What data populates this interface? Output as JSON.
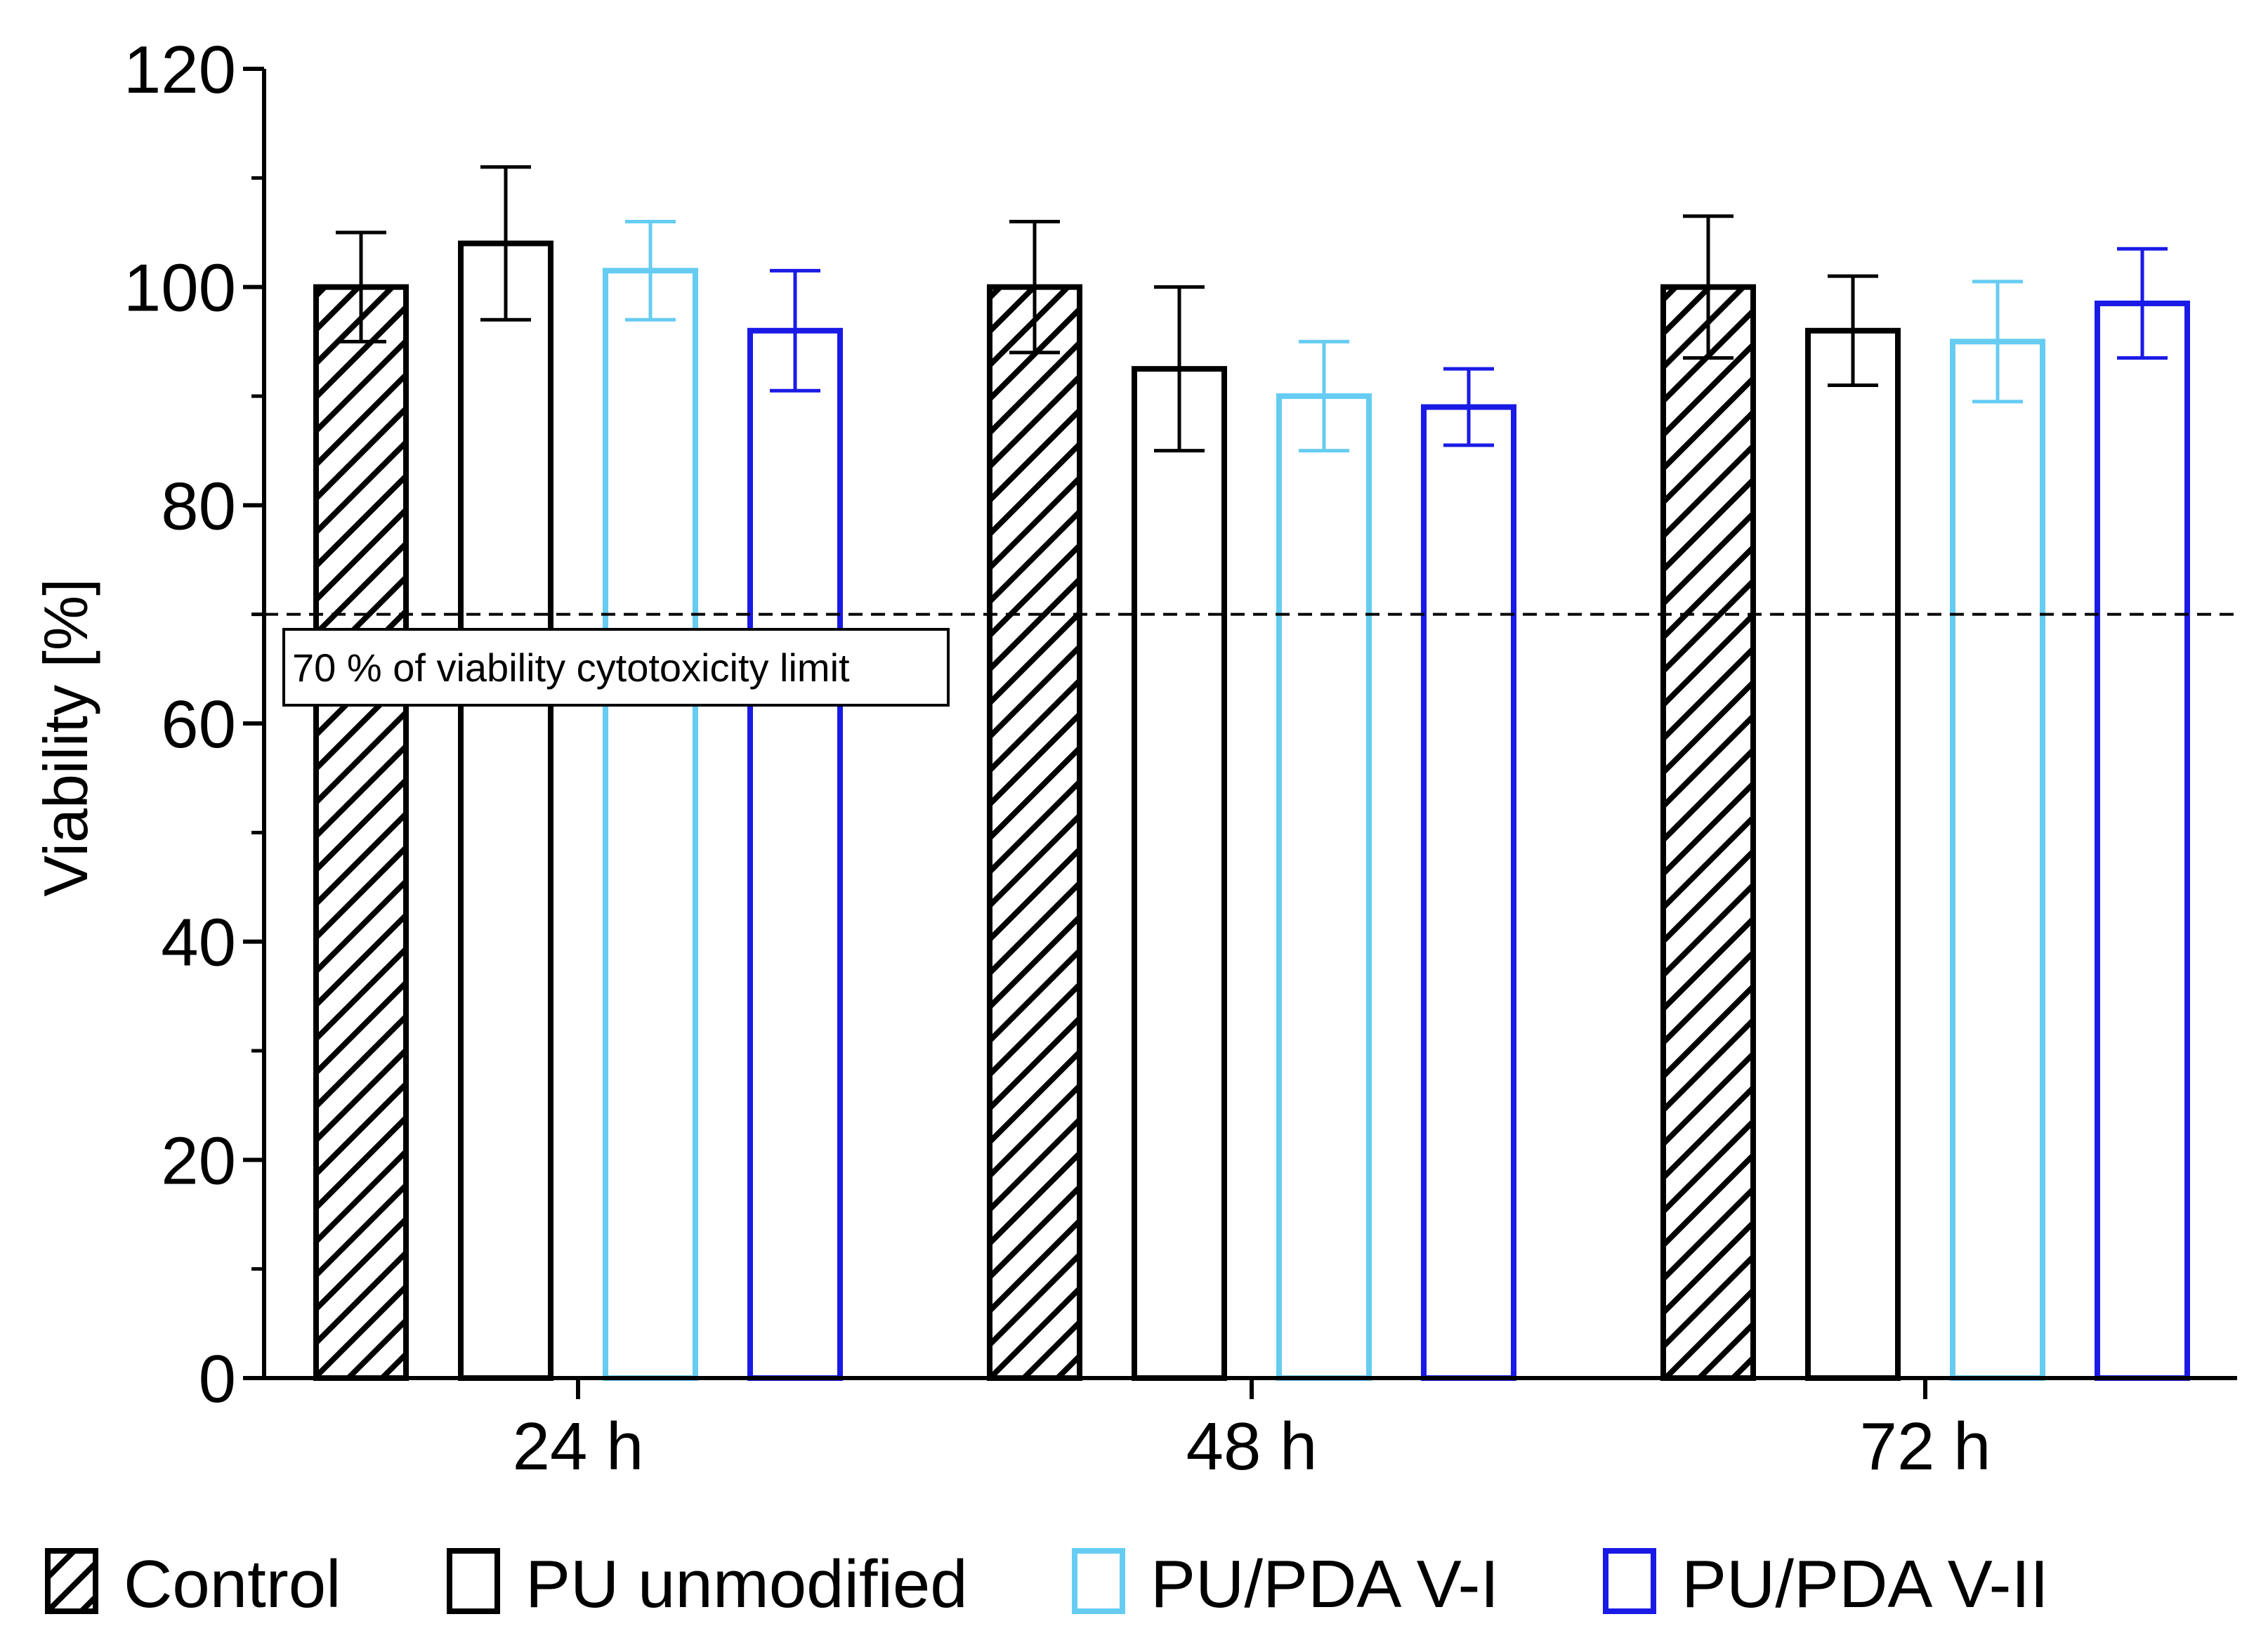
{
  "chart_data": {
    "type": "bar",
    "title": "",
    "xlabel": "",
    "ylabel": "Viability [%]",
    "ylim": [
      0,
      120
    ],
    "yticks": [
      0,
      20,
      40,
      60,
      80,
      100,
      120
    ],
    "categories": [
      "24 h",
      "48 h",
      "72 h"
    ],
    "series": [
      {
        "name": "Control",
        "color": "#000000",
        "pattern": "hatch",
        "values": [
          100,
          100,
          100
        ],
        "errors": [
          5,
          6,
          6.5
        ]
      },
      {
        "name": "PU unmodified",
        "color": "#000000",
        "pattern": "none",
        "values": [
          104,
          92.5,
          96
        ],
        "errors": [
          7,
          7.5,
          5
        ]
      },
      {
        "name": "PU/PDA V-I",
        "color": "#66ccf2",
        "pattern": "none",
        "values": [
          101.5,
          90,
          95
        ],
        "errors": [
          4.5,
          5,
          5.5
        ]
      },
      {
        "name": "PU/PDA V-II",
        "color": "#1a1ae6",
        "pattern": "none",
        "values": [
          96,
          89,
          98.5
        ],
        "errors": [
          5.5,
          3.5,
          5
        ]
      }
    ],
    "reference_line": {
      "value": 70,
      "style": "dashed",
      "label": "70 % of viability cytotoxicity limit"
    },
    "legend_position": "bottom"
  }
}
